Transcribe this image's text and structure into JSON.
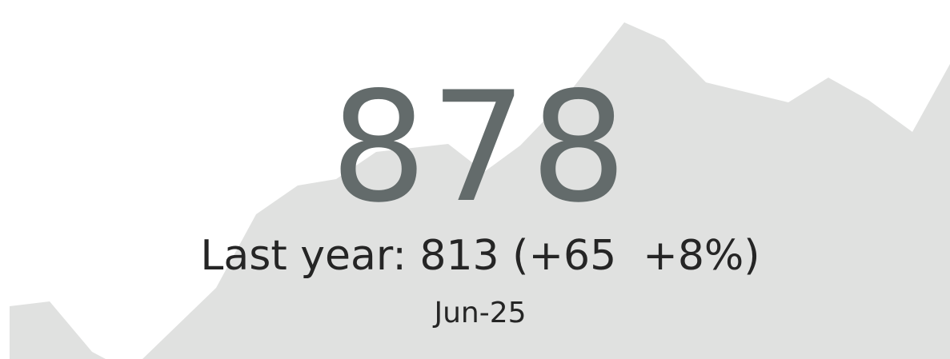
{
  "kpi": {
    "value": "878",
    "comparison": "Last year: 813 (+65  +8%)",
    "period": "Jun-25"
  }
}
